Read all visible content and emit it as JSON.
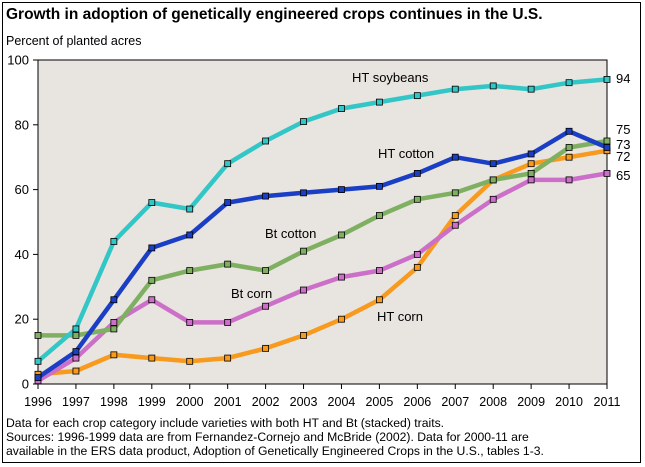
{
  "title": "Growth in adoption of genetically engineered crops continues in the U.S.",
  "ylabel": "Percent of planted acres",
  "notes": [
    "Data for each crop category include varieties with both HT and Bt (stacked) traits.",
    "Sources: 1996-1999 data are from Fernandez-Cornejo and McBride (2002). Data for 2000-11 are",
    "available in the ERS data product, Adoption of Genetically Engineered Crops in the U.S., tables 1-3."
  ],
  "chart_data": {
    "type": "line",
    "title": "Growth in adoption of genetically engineered crops continues in the U.S.",
    "xlabel": "",
    "ylabel": "Percent of planted acres",
    "x": [
      1996,
      1997,
      1998,
      1999,
      2000,
      2001,
      2002,
      2003,
      2004,
      2005,
      2006,
      2007,
      2008,
      2009,
      2010,
      2011
    ],
    "ylim": [
      0,
      100
    ],
    "yticks": [
      0,
      20,
      40,
      60,
      80,
      100
    ],
    "grid": false,
    "background": "#e8e4df",
    "series": [
      {
        "name": "HT soybeans",
        "color": "#33c6c6",
        "end_label": "94",
        "values": [
          7,
          17,
          44,
          56,
          54,
          68,
          75,
          81,
          85,
          87,
          89,
          91,
          92,
          91,
          93,
          94
        ]
      },
      {
        "name": "HT cotton",
        "color": "#1b3fc4",
        "end_label": "73",
        "values": [
          2,
          10,
          26,
          42,
          46,
          56,
          58,
          59,
          60,
          61,
          65,
          70,
          68,
          71,
          78,
          73
        ]
      },
      {
        "name": "Bt cotton",
        "color": "#7fb062",
        "end_label": "75",
        "values": [
          15,
          15,
          17,
          32,
          35,
          37,
          35,
          41,
          46,
          52,
          57,
          59,
          63,
          65,
          73,
          75
        ]
      },
      {
        "name": "Bt corn",
        "color": "#cc6fc8",
        "end_label": "65",
        "values": [
          1,
          8,
          19,
          26,
          19,
          19,
          24,
          29,
          33,
          35,
          40,
          49,
          57,
          63,
          63,
          65
        ]
      },
      {
        "name": "HT corn",
        "color": "#f79a1e",
        "end_label": "72",
        "values": [
          3,
          4,
          9,
          8,
          7,
          8,
          11,
          15,
          20,
          26,
          36,
          52,
          63,
          68,
          70,
          72
        ]
      }
    ]
  }
}
